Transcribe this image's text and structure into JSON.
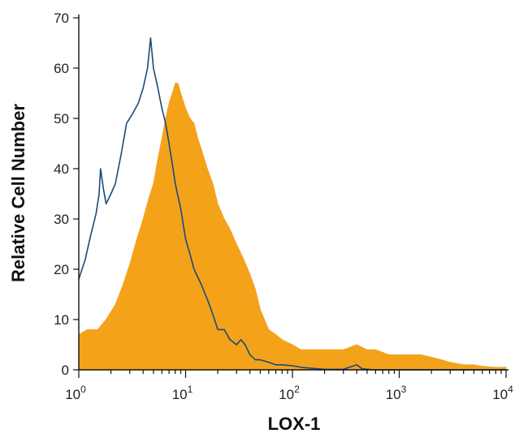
{
  "chart_data": {
    "type": "histogram",
    "xlabel": "LOX-1",
    "ylabel": "Relative Cell Number",
    "xscale": "log",
    "xlim": [
      1,
      10000
    ],
    "ylim": [
      0,
      70
    ],
    "x_ticks": [
      {
        "value": 1,
        "base": "10",
        "exp": "0"
      },
      {
        "value": 10,
        "base": "10",
        "exp": "1"
      },
      {
        "value": 100,
        "base": "10",
        "exp": "2"
      },
      {
        "value": 1000,
        "base": "10",
        "exp": "3"
      },
      {
        "value": 10000,
        "base": "10",
        "exp": "4"
      }
    ],
    "y_ticks": [
      0,
      10,
      20,
      30,
      40,
      50,
      60,
      70
    ],
    "grid": false,
    "legend": "none",
    "series": [
      {
        "style": "filled",
        "color": "#F5A21B",
        "points": [
          [
            1,
            7
          ],
          [
            1.2,
            8
          ],
          [
            1.5,
            8
          ],
          [
            1.8,
            10
          ],
          [
            2.2,
            13
          ],
          [
            2.6,
            17
          ],
          [
            3.0,
            21
          ],
          [
            3.5,
            26
          ],
          [
            4.0,
            30
          ],
          [
            4.5,
            34
          ],
          [
            5.0,
            37
          ],
          [
            5.5,
            42
          ],
          [
            6.0,
            46
          ],
          [
            6.5,
            50
          ],
          [
            7.0,
            53
          ],
          [
            7.5,
            55
          ],
          [
            8.0,
            57
          ],
          [
            8.5,
            57
          ],
          [
            9.0,
            55
          ],
          [
            10,
            52
          ],
          [
            11,
            50
          ],
          [
            12,
            49
          ],
          [
            13,
            46
          ],
          [
            14,
            44
          ],
          [
            16,
            40
          ],
          [
            18,
            37
          ],
          [
            20,
            33
          ],
          [
            23,
            30
          ],
          [
            26,
            28
          ],
          [
            30,
            25
          ],
          [
            35,
            22
          ],
          [
            40,
            19
          ],
          [
            45,
            16
          ],
          [
            50,
            12
          ],
          [
            60,
            8
          ],
          [
            70,
            7
          ],
          [
            80,
            6
          ],
          [
            100,
            5
          ],
          [
            120,
            4
          ],
          [
            150,
            4
          ],
          [
            200,
            4
          ],
          [
            250,
            4
          ],
          [
            300,
            4
          ],
          [
            400,
            5
          ],
          [
            500,
            4
          ],
          [
            600,
            4
          ],
          [
            800,
            3
          ],
          [
            1000,
            3
          ],
          [
            1300,
            3
          ],
          [
            1600,
            3
          ],
          [
            2000,
            2.5
          ],
          [
            2500,
            2
          ],
          [
            3000,
            1.5
          ],
          [
            4000,
            1
          ],
          [
            5000,
            1
          ],
          [
            6000,
            0.7
          ],
          [
            8000,
            0.5
          ],
          [
            10000,
            0.5
          ]
        ]
      },
      {
        "style": "outline",
        "color": "#1A4A7A",
        "points": [
          [
            1,
            18
          ],
          [
            1.15,
            22
          ],
          [
            1.3,
            27
          ],
          [
            1.45,
            31
          ],
          [
            1.55,
            35
          ],
          [
            1.6,
            40
          ],
          [
            1.7,
            36
          ],
          [
            1.8,
            33
          ],
          [
            2.0,
            35
          ],
          [
            2.2,
            37
          ],
          [
            2.5,
            43
          ],
          [
            2.8,
            49
          ],
          [
            3.2,
            51
          ],
          [
            3.6,
            53
          ],
          [
            4.0,
            56
          ],
          [
            4.4,
            60
          ],
          [
            4.7,
            66
          ],
          [
            5.0,
            60
          ],
          [
            5.5,
            56
          ],
          [
            6.0,
            52
          ],
          [
            6.5,
            49
          ],
          [
            7.0,
            45
          ],
          [
            7.5,
            41
          ],
          [
            8.0,
            37
          ],
          [
            9.0,
            32
          ],
          [
            10,
            26
          ],
          [
            11,
            23
          ],
          [
            12,
            20
          ],
          [
            14,
            17
          ],
          [
            16,
            14
          ],
          [
            18,
            11
          ],
          [
            20,
            8
          ],
          [
            23,
            8
          ],
          [
            26,
            6
          ],
          [
            30,
            5
          ],
          [
            33,
            6
          ],
          [
            36,
            5
          ],
          [
            40,
            3
          ],
          [
            45,
            2
          ],
          [
            50,
            2
          ],
          [
            60,
            1.5
          ],
          [
            70,
            1
          ],
          [
            80,
            1
          ],
          [
            100,
            0.8
          ],
          [
            120,
            0.5
          ],
          [
            150,
            0.3
          ],
          [
            200,
            0.1
          ],
          [
            300,
            0.1
          ],
          [
            400,
            1
          ],
          [
            450,
            0.2
          ],
          [
            600,
            0
          ],
          [
            10000,
            0
          ]
        ]
      }
    ]
  }
}
